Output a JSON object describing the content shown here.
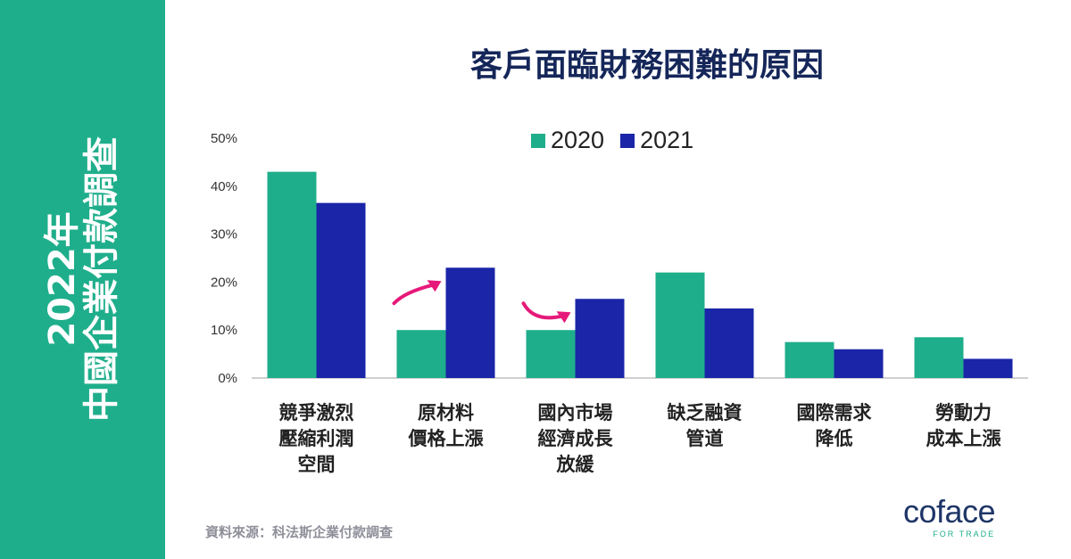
{
  "sidebar": {
    "line1": "2022年",
    "line2": "中國企業付款調查"
  },
  "chart_data": {
    "type": "bar",
    "title": "客戶面臨財務困難的原因",
    "categories": [
      [
        "競爭激烈",
        "壓縮利潤",
        "空間"
      ],
      [
        "原材料",
        "價格上漲"
      ],
      [
        "國內市場",
        "經濟成長",
        "放緩"
      ],
      [
        "缺乏融資",
        "管道"
      ],
      [
        "國際需求",
        "降低"
      ],
      [
        "勞動力",
        "成本上漲"
      ]
    ],
    "series": [
      {
        "name": "2020",
        "color": "#1fae8b",
        "values": [
          43,
          10,
          10,
          22,
          7.5,
          8.5
        ]
      },
      {
        "name": "2021",
        "color": "#1a25a8",
        "values": [
          36.5,
          23,
          16.5,
          14.5,
          6,
          4
        ]
      }
    ],
    "ylim": [
      0,
      50
    ],
    "yticks": [
      "0%",
      "10%",
      "20%",
      "30%",
      "40%",
      "50%"
    ],
    "legend_position": "top-center",
    "grid": false,
    "annotations": [
      {
        "type": "arrow",
        "color": "#e6197a",
        "category_index": 1
      },
      {
        "type": "arrow",
        "color": "#e6197a",
        "category_index": 2
      }
    ]
  },
  "source": "資料來源：科法斯企業付款調查",
  "logo": {
    "word": "coface",
    "tagline": "FOR TRADE"
  }
}
